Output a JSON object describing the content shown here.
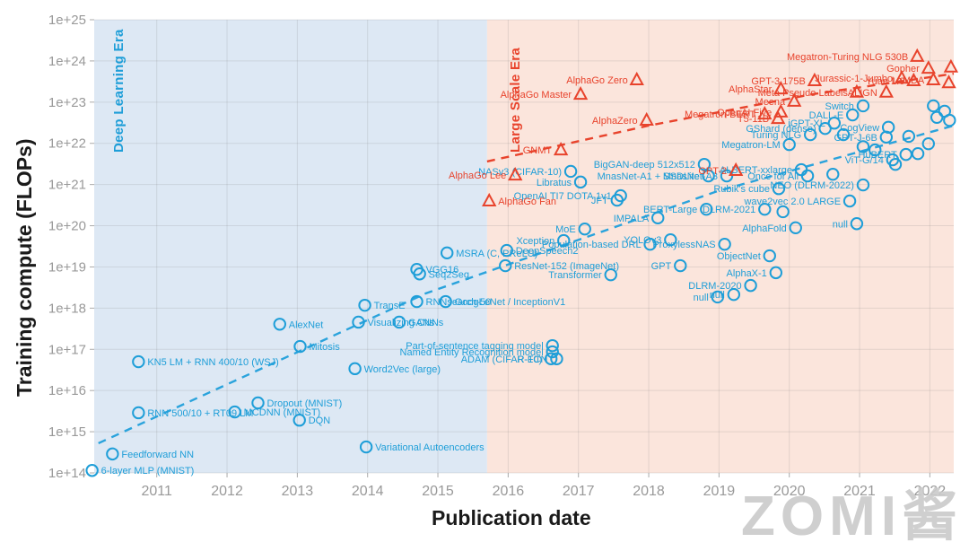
{
  "watermark": {
    "text": "ZOMI酱"
  },
  "axes": {
    "x_title": "Publication date",
    "y_title": "Training compute (FLOPs)",
    "x_ticks": [
      {
        "year": 2011,
        "label": "2011"
      },
      {
        "year": 2012,
        "label": "2012"
      },
      {
        "year": 2013,
        "label": "2013"
      },
      {
        "year": 2014,
        "label": "2014"
      },
      {
        "year": 2015,
        "label": "2015"
      },
      {
        "year": 2016,
        "label": "2016"
      },
      {
        "year": 2017,
        "label": "2017"
      },
      {
        "year": 2018,
        "label": "2018"
      },
      {
        "year": 2019,
        "label": "2019"
      },
      {
        "year": 2020,
        "label": "2020"
      },
      {
        "year": 2021,
        "label": "2021"
      },
      {
        "year": 2022,
        "label": "2022"
      }
    ],
    "y_ticks": [
      {
        "exp": 25,
        "label": "1e+25"
      },
      {
        "exp": 24,
        "label": "1e+24"
      },
      {
        "exp": 23,
        "label": "1e+23"
      },
      {
        "exp": 22,
        "label": "1e+22"
      },
      {
        "exp": 21,
        "label": "1e+21"
      },
      {
        "exp": 20,
        "label": "1e+20"
      },
      {
        "exp": 19,
        "label": "1e+19"
      },
      {
        "exp": 18,
        "label": "1e+18"
      },
      {
        "exp": 17,
        "label": "1e+17"
      },
      {
        "exp": 16,
        "label": "1e+16"
      },
      {
        "exp": 15,
        "label": "1e+15"
      },
      {
        "exp": 14,
        "label": "1e+14"
      }
    ]
  },
  "chart_data": {
    "type": "scatter",
    "title": "",
    "xlabel": "Publication date",
    "ylabel": "Training compute (FLOPs)",
    "x_unit": "year (decimal)",
    "y_unit": "log10 of training FLOPs",
    "xlim": [
      2010.11,
      2022.34
    ],
    "ylim": [
      14,
      25
    ],
    "grid": true,
    "legend_position": "none",
    "colors": {
      "deep_learning": "#1E9ED8",
      "large_scale": "#E8432C",
      "deep_learning_bg": "#dde8f4",
      "large_scale_bg": "#fbe5dc",
      "tick_text": "#999999",
      "gridline": "rgba(120,120,120,0.18)"
    },
    "eras": [
      {
        "label": "Deep Learning Era",
        "start": 2010.11,
        "end": 2015.7,
        "bg": "#dde8f4",
        "color": "#1E9ED8"
      },
      {
        "label": "Large Scale Era",
        "start": 2015.7,
        "end": 2022.34,
        "bg": "#fbe5dc",
        "color": "#E8432C"
      }
    ],
    "trend_lines": [
      {
        "name": "deep-learning-trend",
        "color": "#2AA3DC",
        "points": [
          [
            2010.17,
            14.72
          ],
          [
            2014.83,
            18.36
          ],
          [
            2018.98,
            20.84
          ],
          [
            2022.34,
            22.43
          ]
        ]
      },
      {
        "name": "large-scale-trend",
        "color": "#E8432C",
        "points": [
          [
            2015.7,
            21.56
          ],
          [
            2018.0,
            22.43
          ],
          [
            2020.32,
            23.19
          ],
          [
            2022.34,
            23.69
          ]
        ]
      }
    ],
    "series": [
      {
        "name": "Deep Learning era systems",
        "marker": "circle",
        "color": "#1E9ED8",
        "points": [
          {
            "label": "6-layer MLP (MNIST)",
            "year": 2010.08,
            "flops_exp": 14.06,
            "label_side": "right"
          },
          {
            "label": "Feedforward NN",
            "year": 2010.37,
            "flops_exp": 14.46,
            "label_side": "right"
          },
          {
            "label": "KN5 LM + RNN 400/10 (WSJ)",
            "year": 2010.74,
            "flops_exp": 16.7,
            "label_side": "right"
          },
          {
            "label": "RNN 500/10 + RT09 LM",
            "year": 2010.74,
            "flops_exp": 15.46,
            "label_side": "right"
          },
          {
            "label": "MCDNN (MNIST)",
            "year": 2012.11,
            "flops_exp": 15.48,
            "label_side": "right"
          },
          {
            "label": "Dropout (MNIST)",
            "year": 2012.44,
            "flops_exp": 15.7,
            "label_side": "right"
          },
          {
            "label": "AlexNet",
            "year": 2012.75,
            "flops_exp": 17.61,
            "label_side": "right"
          },
          {
            "label": "Mitosis",
            "year": 2013.04,
            "flops_exp": 17.07,
            "label_side": "right"
          },
          {
            "label": "DQN",
            "year": 2013.03,
            "flops_exp": 15.28,
            "label_side": "right"
          },
          {
            "label": "Word2Vec (large)",
            "year": 2013.82,
            "flops_exp": 16.53,
            "label_side": "right"
          },
          {
            "label": "Variational Autoencoders",
            "year": 2013.98,
            "flops_exp": 14.63,
            "label_side": "right"
          },
          {
            "label": "TransE",
            "year": 2013.96,
            "flops_exp": 18.07,
            "label_side": "right"
          },
          {
            "label": "Visualizing CNNs",
            "year": 2013.87,
            "flops_exp": 17.66,
            "label_side": "right"
          },
          {
            "label": "GANs",
            "year": 2014.45,
            "flops_exp": 17.66,
            "label_side": "right"
          },
          {
            "label": "RNNsearch-50",
            "year": 2014.7,
            "flops_exp": 18.16,
            "label_side": "right"
          },
          {
            "label": "GoogLeNet / InceptionV1",
            "year": 2015.11,
            "flops_exp": 18.16,
            "label_side": "right"
          },
          {
            "label": "VGG16",
            "year": 2014.7,
            "flops_exp": 18.94,
            "label_side": "right"
          },
          {
            "label": "Seq2Seq",
            "year": 2014.74,
            "flops_exp": 18.83,
            "label_side": "right"
          },
          {
            "label": "MSRA (C, PReLU)",
            "year": 2015.13,
            "flops_exp": 19.34,
            "label_side": "right"
          },
          {
            "label": "DeepSpeech2",
            "year": 2015.98,
            "flops_exp": 19.4,
            "label_side": "right"
          },
          {
            "label": "ResNet-152 (ImageNet)",
            "year": 2015.96,
            "flops_exp": 19.03,
            "label_side": "right"
          },
          {
            "label": "Part-of-sentence tagging model",
            "year": 2016.63,
            "flops_exp": 17.09,
            "label_side": "left"
          },
          {
            "label": "Named Entity Recognition model",
            "year": 2016.63,
            "flops_exp": 16.94,
            "label_side": "left"
          },
          {
            "label": "ADAM (CIFAR-10)",
            "year": 2016.61,
            "flops_exp": 16.77,
            "label_side": "left"
          },
          {
            "label": "R-FCN",
            "year": 2016.69,
            "flops_exp": 16.77,
            "label_side": "left"
          },
          {
            "label": "Xception",
            "year": 2016.79,
            "flops_exp": 19.64,
            "label_side": "left"
          },
          {
            "label": "MoE",
            "year": 2017.09,
            "flops_exp": 19.92,
            "label_side": "left"
          },
          {
            "label": "NASv3 (CIFAR-10)",
            "year": 2016.89,
            "flops_exp": 21.32,
            "label_side": "left"
          },
          {
            "label": "Libratus",
            "year": 2017.03,
            "flops_exp": 21.06,
            "label_side": "left"
          },
          {
            "label": "OpenAI TI7 DOTA 1v1",
            "year": 2017.6,
            "flops_exp": 20.73,
            "label_side": "left"
          },
          {
            "label": "JFT",
            "year": 2017.55,
            "flops_exp": 20.62,
            "label_side": "left"
          },
          {
            "label": "Transformer",
            "year": 2017.46,
            "flops_exp": 18.81,
            "label_side": "left"
          },
          {
            "label": "GPT",
            "year": 2018.45,
            "flops_exp": 19.03,
            "label_side": "left"
          },
          {
            "label": "IMPALA",
            "year": 2018.13,
            "flops_exp": 20.19,
            "label_side": "left"
          },
          {
            "label": "YOLOv3",
            "year": 2018.31,
            "flops_exp": 19.66,
            "label_side": "left"
          },
          {
            "label": "Population-based DRL",
            "year": 2018.02,
            "flops_exp": 19.55,
            "label_side": "left"
          },
          {
            "label": "BigGAN-deep 512x512",
            "year": 2018.79,
            "flops_exp": 21.49,
            "label_side": "left"
          },
          {
            "label": "BERT-Large",
            "year": 2018.82,
            "flops_exp": 20.4,
            "label_side": "left"
          },
          {
            "label": "MnasNet-A1 + SSDLite",
            "year": 2018.85,
            "flops_exp": 21.21,
            "label_side": "left"
          },
          {
            "label": "MnasNet-A3",
            "year": 2019.11,
            "flops_exp": 21.21,
            "label_side": "left"
          },
          {
            "label": "ProxylessNAS",
            "year": 2019.08,
            "flops_exp": 19.55,
            "label_side": "left"
          },
          {
            "label": "ObjectNet",
            "year": 2019.72,
            "flops_exp": 19.27,
            "label_side": "left"
          },
          {
            "label": "AlphaX-1",
            "year": 2019.81,
            "flops_exp": 18.86,
            "label_side": "left"
          },
          {
            "label": "DLRM-2020",
            "year": 2019.45,
            "flops_exp": 18.55,
            "label_side": "left"
          },
          {
            "label": "null",
            "year": 2019.21,
            "flops_exp": 18.33,
            "label_side": "left"
          },
          {
            "label": "null",
            "year": 2018.98,
            "flops_exp": 18.27,
            "label_side": "left"
          },
          {
            "label": "ALBERT-xxlarge",
            "year": 2020.17,
            "flops_exp": 21.36,
            "label_side": "left"
          },
          {
            "label": "Once for All",
            "year": 2020.26,
            "flops_exp": 21.21,
            "label_side": "left"
          },
          {
            "label": "",
            "year": 2020.62,
            "flops_exp": 21.25,
            "label_side": "left"
          },
          {
            "label": "NEO (DLRM-2022)",
            "year": 2021.05,
            "flops_exp": 20.99,
            "label_side": "left"
          },
          {
            "label": "Rubik's cube",
            "year": 2019.85,
            "flops_exp": 20.9,
            "label_side": "left"
          },
          {
            "label": "wave2vec 2.0 LARGE",
            "year": 2020.86,
            "flops_exp": 20.6,
            "label_side": "left"
          },
          {
            "label": "DLRM-2021",
            "year": 2019.65,
            "flops_exp": 20.4,
            "label_side": "left"
          },
          {
            "label": "AlphaFold",
            "year": 2020.09,
            "flops_exp": 19.95,
            "label_side": "left"
          },
          {
            "label": "null",
            "year": 2020.96,
            "flops_exp": 20.05,
            "label_side": "left"
          },
          {
            "label": "GShard (dense)",
            "year": 2020.51,
            "flops_exp": 22.36,
            "label_side": "left"
          },
          {
            "label": "iGPT-XL",
            "year": 2020.64,
            "flops_exp": 22.49,
            "label_side": "left"
          },
          {
            "label": "Turing NLG",
            "year": 2020.3,
            "flops_exp": 22.21,
            "label_side": "left"
          },
          {
            "label": "Megatron-LM",
            "year": 2020.0,
            "flops_exp": 21.97,
            "label_side": "left"
          },
          {
            "label": "Switch",
            "year": 2021.05,
            "flops_exp": 22.91,
            "label_side": "left"
          },
          {
            "label": "DALL-E",
            "year": 2020.9,
            "flops_exp": 22.69,
            "label_side": "left"
          },
          {
            "label": "CogView",
            "year": 2021.41,
            "flops_exp": 22.39,
            "label_side": "left"
          },
          {
            "label": "GPT-J-6B",
            "year": 2021.38,
            "flops_exp": 22.15,
            "label_side": "left"
          },
          {
            "label": "HuBERT",
            "year": 2021.66,
            "flops_exp": 21.73,
            "label_side": "left"
          },
          {
            "label": "ViT-G/14",
            "year": 2021.47,
            "flops_exp": 21.6,
            "label_side": "left"
          },
          {
            "label": "",
            "year": 2020.77,
            "flops_exp": 22.21,
            "label_side": "left"
          },
          {
            "label": "",
            "year": 2021.05,
            "flops_exp": 21.92,
            "label_side": "left"
          },
          {
            "label": "",
            "year": 2021.22,
            "flops_exp": 21.84,
            "label_side": "left"
          },
          {
            "label": "",
            "year": 2021.83,
            "flops_exp": 21.75,
            "label_side": "left"
          },
          {
            "label": "",
            "year": 2021.51,
            "flops_exp": 21.49,
            "label_side": "left"
          },
          {
            "label": "",
            "year": 2022.05,
            "flops_exp": 22.91,
            "label_side": "left"
          },
          {
            "label": "",
            "year": 2022.21,
            "flops_exp": 22.78,
            "label_side": "left"
          },
          {
            "label": "",
            "year": 2022.1,
            "flops_exp": 22.63,
            "label_side": "left"
          },
          {
            "label": "",
            "year": 2022.28,
            "flops_exp": 22.56,
            "label_side": "left"
          },
          {
            "label": "",
            "year": 2019.91,
            "flops_exp": 20.34,
            "label_side": "left"
          },
          {
            "label": "",
            "year": 2021.98,
            "flops_exp": 21.99,
            "label_side": "left"
          },
          {
            "label": "",
            "year": 2021.7,
            "flops_exp": 22.17,
            "label_side": "left"
          }
        ]
      },
      {
        "name": "Large Scale era systems",
        "marker": "triangle",
        "color": "#E8432C",
        "points": [
          {
            "label": "AlphaGo Fan",
            "year": 2015.73,
            "flops_exp": 20.6,
            "label_side": "right"
          },
          {
            "label": "AlphaGo Lee",
            "year": 2016.1,
            "flops_exp": 21.23,
            "label_side": "left"
          },
          {
            "label": "GNMT",
            "year": 2016.75,
            "flops_exp": 21.84,
            "label_side": "left"
          },
          {
            "label": "AlphaGo Master",
            "year": 2017.03,
            "flops_exp": 23.19,
            "label_side": "left"
          },
          {
            "label": "AlphaGo Zero",
            "year": 2017.83,
            "flops_exp": 23.54,
            "label_side": "left"
          },
          {
            "label": "AlphaZero",
            "year": 2017.97,
            "flops_exp": 22.56,
            "label_side": "left"
          },
          {
            "label": "GPT-2",
            "year": 2019.24,
            "flops_exp": 21.34,
            "label_side": "left"
          },
          {
            "label": "Megatron-BERT",
            "year": 2019.65,
            "flops_exp": 22.71,
            "label_side": "left"
          },
          {
            "label": "OpenAI Five",
            "year": 2019.88,
            "flops_exp": 22.76,
            "label_side": "left"
          },
          {
            "label": "T5-11B",
            "year": 2019.84,
            "flops_exp": 22.6,
            "label_side": "left"
          },
          {
            "label": "AlphaStar",
            "year": 2019.88,
            "flops_exp": 23.32,
            "label_side": "left"
          },
          {
            "label": "Meena",
            "year": 2020.07,
            "flops_exp": 23.02,
            "label_side": "left"
          },
          {
            "label": "GPT-3 175B",
            "year": 2020.36,
            "flops_exp": 23.52,
            "label_side": "left"
          },
          {
            "label": "Meta Pseudo Labels",
            "year": 2020.96,
            "flops_exp": 23.24,
            "label_side": "left"
          },
          {
            "label": "ALIGN",
            "year": 2021.38,
            "flops_exp": 23.24,
            "label_side": "left"
          },
          {
            "label": "Jurassic-1-Jumbo",
            "year": 2021.6,
            "flops_exp": 23.58,
            "label_side": "left"
          },
          {
            "label": "Yuan 1.0",
            "year": 2021.77,
            "flops_exp": 23.52,
            "label_side": "left"
          },
          {
            "label": "LaMDA",
            "year": 2022.05,
            "flops_exp": 23.54,
            "label_side": "left"
          },
          {
            "label": "Megatron-Turing NLG 530B",
            "year": 2021.82,
            "flops_exp": 24.11,
            "label_side": "left"
          },
          {
            "label": "Gopher",
            "year": 2021.98,
            "flops_exp": 23.82,
            "label_side": "left"
          },
          {
            "label": "",
            "year": 2022.3,
            "flops_exp": 23.85,
            "label_side": "left"
          },
          {
            "label": "",
            "year": 2022.27,
            "flops_exp": 23.47,
            "label_side": "left"
          }
        ]
      }
    ]
  }
}
